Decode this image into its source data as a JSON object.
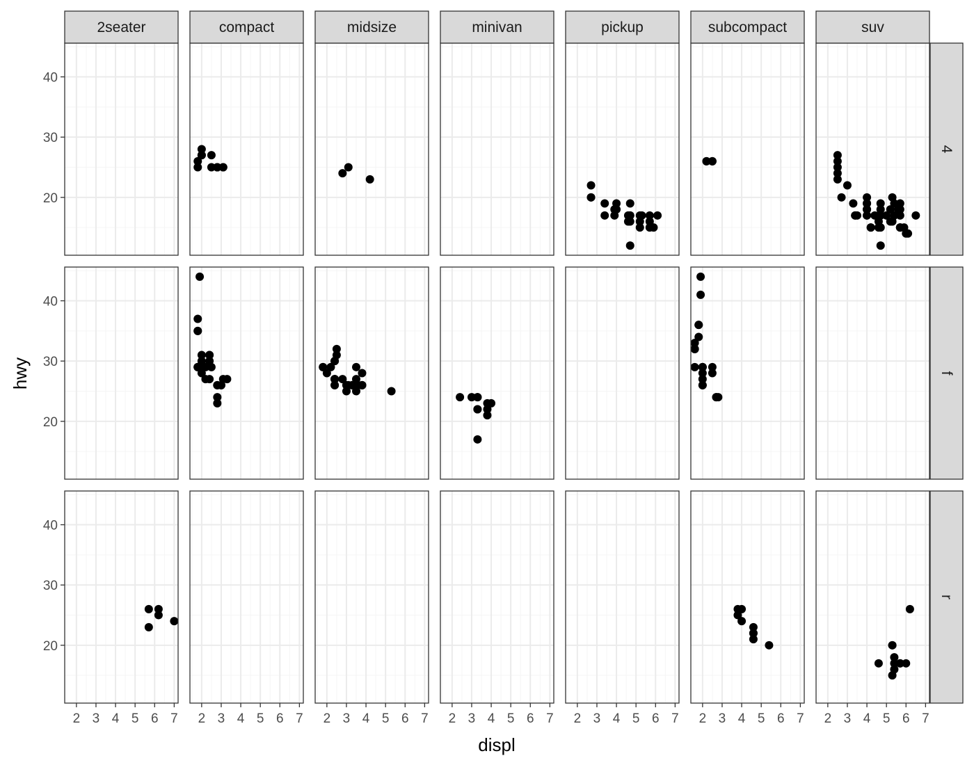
{
  "chart_data": {
    "type": "scatter",
    "facet": "facet_grid(drv ~ class)",
    "xlabel": "displ",
    "ylabel": "hwy",
    "columns": [
      "2seater",
      "compact",
      "midsize",
      "minivan",
      "pickup",
      "subcompact",
      "suv"
    ],
    "rows": [
      "4",
      "f",
      "r"
    ],
    "xlim": [
      1.4,
      7.2
    ],
    "ylim": [
      10.4,
      45.6
    ],
    "xticks": [
      2,
      3,
      4,
      5,
      6,
      7
    ],
    "yticks": [
      20,
      30,
      40
    ],
    "grid": true,
    "theme": "bw",
    "colors": {
      "point": "#000000",
      "strip_fill": "#d9d9d9",
      "grid_major": "#ebebeb",
      "grid_minor": "#f5f5f5",
      "border": "#333333"
    },
    "panels": [
      {
        "row": "4",
        "col": "compact",
        "points": [
          [
            1.8,
            26
          ],
          [
            1.8,
            25
          ],
          [
            2.0,
            28
          ],
          [
            2.0,
            27
          ],
          [
            2.8,
            25
          ],
          [
            2.8,
            25
          ],
          [
            3.1,
            25
          ],
          [
            2.0,
            27
          ],
          [
            2.8,
            25
          ],
          [
            3.1,
            25
          ],
          [
            2.5,
            27
          ],
          [
            2.5,
            25
          ]
        ]
      },
      {
        "row": "4",
        "col": "midsize",
        "points": [
          [
            2.8,
            24
          ],
          [
            3.1,
            25
          ],
          [
            4.2,
            23
          ]
        ]
      },
      {
        "row": "4",
        "col": "pickup",
        "points": [
          [
            2.7,
            20
          ],
          [
            2.7,
            20
          ],
          [
            2.7,
            22
          ],
          [
            3.4,
            19
          ],
          [
            3.4,
            17
          ],
          [
            4.0,
            19
          ],
          [
            4.0,
            18
          ],
          [
            4.7,
            17
          ],
          [
            4.7,
            17
          ],
          [
            4.7,
            19
          ],
          [
            4.7,
            12
          ],
          [
            5.7,
            17
          ],
          [
            5.7,
            16
          ],
          [
            3.9,
            17
          ],
          [
            3.9,
            18
          ],
          [
            4.6,
            17
          ],
          [
            4.6,
            16
          ],
          [
            5.2,
            17
          ],
          [
            5.7,
            15
          ],
          [
            5.2,
            16
          ],
          [
            5.9,
            15
          ],
          [
            4.7,
            16
          ],
          [
            5.3,
            17
          ],
          [
            5.2,
            15
          ],
          [
            6.1,
            17
          ]
        ]
      },
      {
        "row": "4",
        "col": "subcompact",
        "points": [
          [
            2.2,
            26
          ],
          [
            2.2,
            26
          ],
          [
            2.5,
            26
          ],
          [
            2.5,
            26
          ]
        ]
      },
      {
        "row": "4",
        "col": "suv",
        "points": [
          [
            5.3,
            20
          ],
          [
            5.7,
            19
          ],
          [
            5.3,
            16
          ],
          [
            5.6,
            18
          ],
          [
            6.5,
            17
          ],
          [
            2.7,
            20
          ],
          [
            4.0,
            17
          ],
          [
            4.7,
            15
          ],
          [
            4.6,
            17
          ],
          [
            4.2,
            15
          ],
          [
            4.4,
            17
          ],
          [
            4.7,
            12
          ],
          [
            5.7,
            17
          ],
          [
            4.0,
            19
          ],
          [
            4.2,
            15
          ],
          [
            4.6,
            16
          ],
          [
            6.1,
            14
          ],
          [
            5.4,
            19
          ],
          [
            5.4,
            17
          ],
          [
            4.0,
            20
          ],
          [
            4.0,
            19
          ],
          [
            4.7,
            17
          ],
          [
            4.7,
            18
          ],
          [
            5.7,
            15
          ],
          [
            3.0,
            22
          ],
          [
            3.3,
            19
          ],
          [
            4.7,
            19
          ],
          [
            4.7,
            17
          ],
          [
            5.2,
            16
          ],
          [
            5.2,
            18
          ],
          [
            5.7,
            15
          ],
          [
            2.5,
            25
          ],
          [
            2.5,
            26
          ],
          [
            2.5,
            23
          ],
          [
            2.5,
            24
          ],
          [
            2.5,
            27
          ],
          [
            3.4,
            17
          ],
          [
            3.4,
            17
          ],
          [
            3.5,
            17
          ],
          [
            4.0,
            18
          ],
          [
            4.0,
            17
          ],
          [
            4.6,
            15
          ],
          [
            5.0,
            17
          ],
          [
            5.4,
            17
          ],
          [
            5.7,
            18
          ],
          [
            5.9,
            15
          ],
          [
            4.0,
            18
          ],
          [
            5.7,
            15
          ],
          [
            6.0,
            14
          ]
        ]
      },
      {
        "row": "f",
        "col": "compact",
        "points": [
          [
            1.8,
            29
          ],
          [
            1.8,
            29
          ],
          [
            2.0,
            31
          ],
          [
            2.0,
            30
          ],
          [
            2.8,
            26
          ],
          [
            2.8,
            26
          ],
          [
            3.1,
            27
          ],
          [
            2.4,
            30
          ],
          [
            2.4,
            27
          ],
          [
            3.0,
            26
          ],
          [
            3.3,
            27
          ],
          [
            2.2,
            29
          ],
          [
            2.2,
            27
          ],
          [
            2.4,
            31
          ],
          [
            2.4,
            31
          ],
          [
            3.0,
            26
          ],
          [
            1.8,
            35
          ],
          [
            1.8,
            37
          ],
          [
            1.8,
            35
          ],
          [
            1.9,
            44
          ],
          [
            2.0,
            29
          ],
          [
            2.0,
            29
          ],
          [
            2.0,
            29
          ],
          [
            2.8,
            23
          ],
          [
            2.8,
            24
          ],
          [
            1.8,
            29
          ],
          [
            2.0,
            29
          ],
          [
            2.5,
            29
          ],
          [
            2.0,
            28
          ]
        ]
      },
      {
        "row": "f",
        "col": "midsize",
        "points": [
          [
            2.4,
            27
          ],
          [
            2.4,
            30
          ],
          [
            3.1,
            26
          ],
          [
            3.5,
            29
          ],
          [
            3.6,
            26
          ],
          [
            2.4,
            27
          ],
          [
            3.0,
            26
          ],
          [
            3.3,
            26
          ],
          [
            3.3,
            26
          ],
          [
            3.3,
            26
          ],
          [
            3.8,
            26
          ],
          [
            3.8,
            28
          ],
          [
            3.8,
            26
          ],
          [
            3.8,
            26
          ],
          [
            2.4,
            27
          ],
          [
            2.4,
            30
          ],
          [
            2.5,
            32
          ],
          [
            2.5,
            31
          ],
          [
            3.5,
            27
          ],
          [
            3.5,
            26
          ],
          [
            3.0,
            26
          ],
          [
            3.0,
            25
          ],
          [
            3.5,
            25
          ],
          [
            5.3,
            25
          ],
          [
            1.8,
            29
          ],
          [
            1.8,
            29
          ],
          [
            2.0,
            28
          ],
          [
            2.8,
            27
          ],
          [
            2.4,
            26
          ],
          [
            2.4,
            26
          ],
          [
            2.2,
            29
          ]
        ]
      },
      {
        "row": "f",
        "col": "minivan",
        "points": [
          [
            2.4,
            24
          ],
          [
            3.0,
            24
          ],
          [
            3.3,
            22
          ],
          [
            3.3,
            22
          ],
          [
            3.3,
            24
          ],
          [
            3.3,
            24
          ],
          [
            3.3,
            17
          ],
          [
            3.8,
            22
          ],
          [
            3.8,
            21
          ],
          [
            3.8,
            23
          ],
          [
            4.0,
            23
          ]
        ]
      },
      {
        "row": "f",
        "col": "subcompact",
        "points": [
          [
            1.6,
            33
          ],
          [
            1.6,
            32
          ],
          [
            1.6,
            32
          ],
          [
            1.6,
            29
          ],
          [
            1.6,
            32
          ],
          [
            1.8,
            34
          ],
          [
            1.8,
            36
          ],
          [
            1.8,
            36
          ],
          [
            2.0,
            29
          ],
          [
            2.0,
            26
          ],
          [
            2.0,
            27
          ],
          [
            2.0,
            28
          ],
          [
            1.9,
            44
          ],
          [
            1.9,
            41
          ],
          [
            2.0,
            29
          ],
          [
            2.5,
            29
          ],
          [
            2.5,
            28
          ],
          [
            2.7,
            24
          ],
          [
            2.7,
            24
          ],
          [
            2.8,
            24
          ],
          [
            2.0,
            26
          ],
          [
            2.0,
            29
          ]
        ]
      },
      {
        "row": "r",
        "col": "2seater",
        "points": [
          [
            5.7,
            26
          ],
          [
            5.7,
            23
          ],
          [
            6.2,
            26
          ],
          [
            6.2,
            25
          ],
          [
            7.0,
            24
          ]
        ]
      },
      {
        "row": "r",
        "col": "subcompact",
        "points": [
          [
            3.8,
            26
          ],
          [
            3.8,
            25
          ],
          [
            4.0,
            26
          ],
          [
            4.0,
            24
          ],
          [
            4.6,
            21
          ],
          [
            4.6,
            22
          ],
          [
            4.6,
            23
          ],
          [
            4.6,
            22
          ],
          [
            5.4,
            20
          ]
        ]
      },
      {
        "row": "r",
        "col": "suv",
        "points": [
          [
            5.3,
            20
          ],
          [
            5.3,
            15
          ],
          [
            5.3,
            20
          ],
          [
            5.7,
            17
          ],
          [
            6.0,
            17
          ],
          [
            5.7,
            17
          ],
          [
            6.2,
            26
          ],
          [
            5.4,
            18
          ],
          [
            5.4,
            17
          ],
          [
            4.6,
            17
          ],
          [
            5.4,
            16
          ]
        ]
      }
    ]
  }
}
